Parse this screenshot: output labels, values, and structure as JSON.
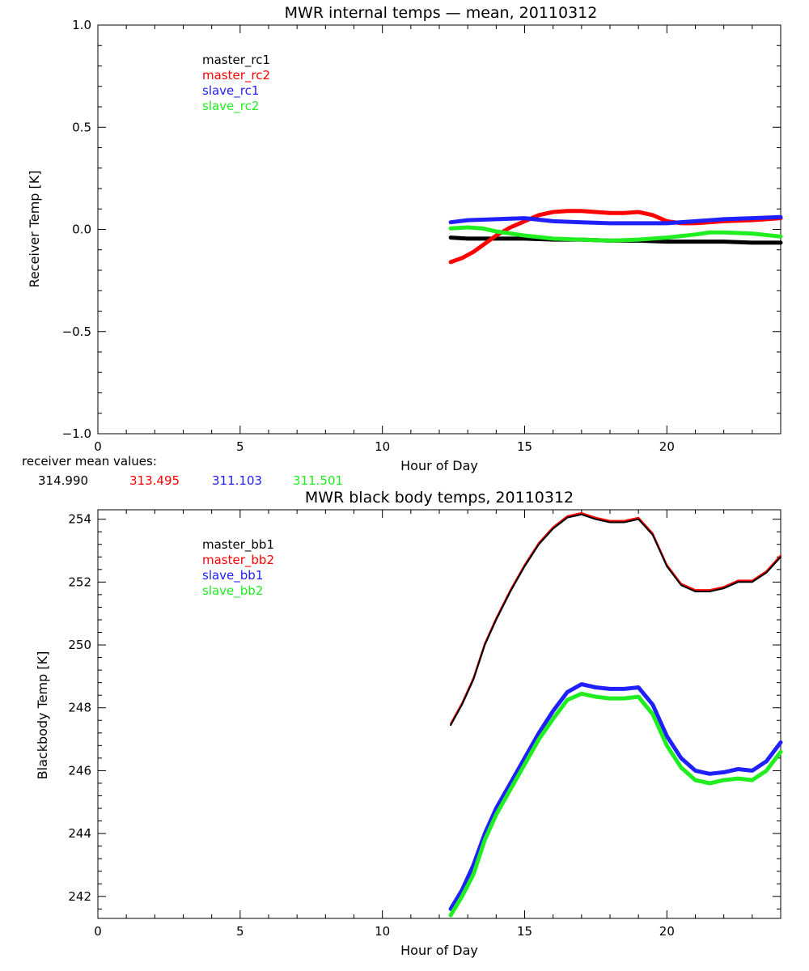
{
  "colors": {
    "black": "#000000",
    "red": "#ff0000",
    "blue": "#2020ff",
    "green": "#20ee20"
  },
  "chart_data": [
    {
      "type": "line",
      "title": "MWR internal temps — mean, 20110312",
      "xlabel": "Hour of Day",
      "ylabel": "Receiver Temp [K]",
      "xlim": [
        0,
        24
      ],
      "ylim": [
        -1.0,
        1.0
      ],
      "x_ticks": [
        0,
        5,
        10,
        15,
        20
      ],
      "y_ticks": [
        -1.0,
        -0.5,
        0.0,
        0.5,
        1.0
      ],
      "y_tick_labels": [
        "−1.0",
        "−0.5",
        "0.0",
        "0.5",
        "1.0"
      ],
      "legend_position": "top-left",
      "grid": false,
      "series": [
        {
          "name": "master_rc1",
          "color": "#000000",
          "x": [
            12.4,
            13,
            14,
            15,
            16,
            17,
            18,
            19,
            20,
            21,
            22,
            23,
            24
          ],
          "y": [
            -0.04,
            -0.045,
            -0.045,
            -0.045,
            -0.05,
            -0.05,
            -0.055,
            -0.055,
            -0.06,
            -0.06,
            -0.06,
            -0.065,
            -0.065
          ]
        },
        {
          "name": "master_rc2",
          "color": "#ff0000",
          "x": [
            12.4,
            12.8,
            13.2,
            13.6,
            14,
            14.5,
            15,
            15.5,
            16,
            16.5,
            17,
            17.5,
            18,
            18.5,
            19,
            19.5,
            20,
            20.5,
            21,
            22,
            23,
            24
          ],
          "y": [
            -0.16,
            -0.14,
            -0.11,
            -0.07,
            -0.03,
            0.01,
            0.04,
            0.07,
            0.085,
            0.09,
            0.09,
            0.085,
            0.08,
            0.08,
            0.085,
            0.07,
            0.04,
            0.03,
            0.03,
            0.04,
            0.045,
            0.055
          ]
        },
        {
          "name": "slave_rc1",
          "color": "#2020ff",
          "x": [
            12.4,
            13,
            14,
            15,
            16,
            17,
            18,
            19,
            20,
            21,
            22,
            23,
            24
          ],
          "y": [
            0.035,
            0.045,
            0.05,
            0.055,
            0.04,
            0.035,
            0.03,
            0.03,
            0.03,
            0.04,
            0.05,
            0.055,
            0.06
          ]
        },
        {
          "name": "slave_rc2",
          "color": "#20ee20",
          "x": [
            12.4,
            13,
            13.5,
            14,
            15,
            16,
            17,
            18,
            19,
            20,
            21,
            21.5,
            22,
            23,
            24
          ],
          "y": [
            0.005,
            0.01,
            0.005,
            -0.01,
            -0.03,
            -0.045,
            -0.05,
            -0.055,
            -0.05,
            -0.04,
            -0.025,
            -0.015,
            -0.015,
            -0.02,
            -0.035
          ]
        }
      ],
      "mean_values": {
        "label": "receiver mean values:",
        "values": [
          {
            "text": "314.990",
            "color": "#000000"
          },
          {
            "text": "313.495",
            "color": "#ff0000"
          },
          {
            "text": "311.103",
            "color": "#2020ff"
          },
          {
            "text": "311.501",
            "color": "#20ee20"
          }
        ]
      }
    },
    {
      "type": "line",
      "title": "MWR black body temps, 20110312",
      "xlabel": "Hour of Day",
      "ylabel": "Blackbody Temp [K]",
      "xlim": [
        0,
        24
      ],
      "ylim": [
        241.3,
        254.3
      ],
      "x_ticks": [
        0,
        5,
        10,
        15,
        20
      ],
      "y_ticks": [
        242,
        244,
        246,
        248,
        250,
        252,
        254
      ],
      "y_tick_labels": [
        "242",
        "244",
        "246",
        "248",
        "250",
        "252",
        "254"
      ],
      "legend_position": "top-left",
      "grid": false,
      "series": [
        {
          "name": "master_bb1",
          "color": "#000000",
          "x": [
            12.4,
            12.8,
            13.2,
            13.6,
            14,
            14.5,
            15,
            15.5,
            16,
            16.5,
            17,
            17.5,
            18,
            18.5,
            19,
            19.5,
            20,
            20.5,
            21,
            21.5,
            22,
            22.5,
            23,
            23.5,
            24
          ],
          "y": [
            247.45,
            248.1,
            248.9,
            250.0,
            250.8,
            251.7,
            252.5,
            253.2,
            253.7,
            254.05,
            254.15,
            254.0,
            253.9,
            253.9,
            254.0,
            253.5,
            252.5,
            251.9,
            251.7,
            251.7,
            251.8,
            252.0,
            252.0,
            252.3,
            252.8
          ]
        },
        {
          "name": "master_bb2",
          "color": "#ff0000",
          "x": [
            12.4,
            12.8,
            13.2,
            13.6,
            14,
            14.5,
            15,
            15.5,
            16,
            16.5,
            17,
            17.5,
            18,
            18.5,
            19,
            19.5,
            20,
            20.5,
            21,
            21.5,
            22,
            22.5,
            23,
            23.5,
            24
          ],
          "y": [
            247.5,
            248.15,
            248.95,
            250.05,
            250.85,
            251.75,
            252.55,
            253.25,
            253.75,
            254.1,
            254.2,
            254.05,
            253.95,
            253.95,
            254.05,
            253.55,
            252.55,
            251.95,
            251.75,
            251.75,
            251.85,
            252.05,
            252.05,
            252.35,
            252.85
          ]
        },
        {
          "name": "slave_bb1",
          "color": "#2020ff",
          "x": [
            12.4,
            12.8,
            13.2,
            13.6,
            14,
            14.5,
            15,
            15.5,
            16,
            16.5,
            17,
            17.5,
            18,
            18.5,
            19,
            19.5,
            20,
            20.5,
            21,
            21.5,
            22,
            22.5,
            23,
            23.5,
            24
          ],
          "y": [
            241.6,
            242.2,
            243.0,
            244.0,
            244.8,
            245.6,
            246.4,
            247.2,
            247.9,
            248.5,
            248.75,
            248.65,
            248.6,
            248.6,
            248.65,
            248.1,
            247.1,
            246.4,
            246.0,
            245.9,
            245.95,
            246.05,
            246.0,
            246.3,
            246.9
          ]
        },
        {
          "name": "slave_bb2",
          "color": "#20ee20",
          "x": [
            12.4,
            12.8,
            13.2,
            13.6,
            14,
            14.5,
            15,
            15.5,
            16,
            16.5,
            17,
            17.5,
            18,
            18.5,
            19,
            19.5,
            20,
            20.5,
            21,
            21.5,
            22,
            22.5,
            23,
            23.5,
            24
          ],
          "y": [
            241.4,
            242.0,
            242.7,
            243.8,
            244.6,
            245.4,
            246.2,
            247.0,
            247.65,
            248.25,
            248.45,
            248.35,
            248.3,
            248.3,
            248.35,
            247.8,
            246.8,
            246.1,
            245.7,
            245.6,
            245.7,
            245.75,
            245.7,
            246.0,
            246.6
          ]
        }
      ]
    }
  ]
}
